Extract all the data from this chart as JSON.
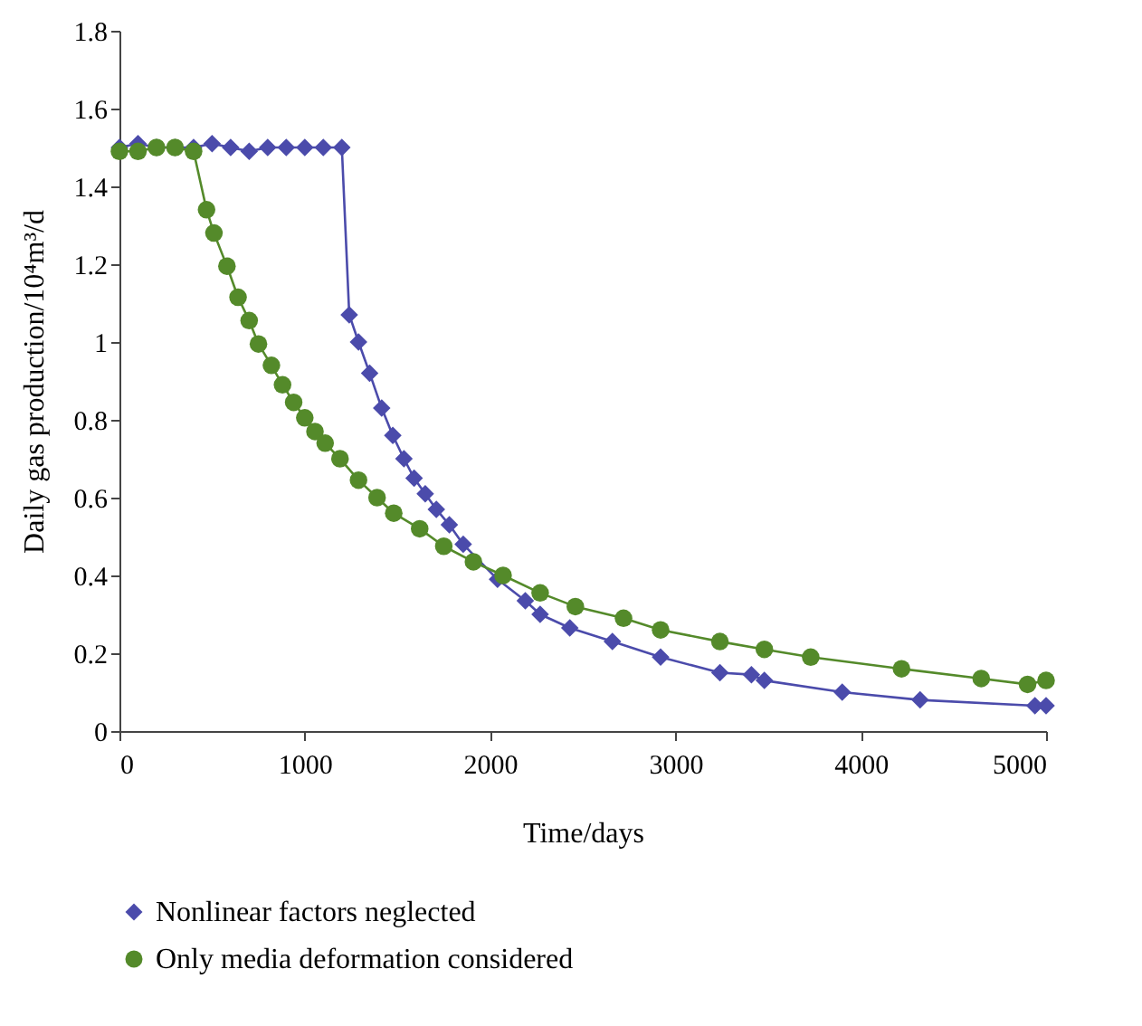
{
  "chart_data": {
    "type": "line",
    "xlabel": "Time/days",
    "ylabel": "Daily gas production/10⁴m³/d",
    "xlim": [
      0,
      5000
    ],
    "xticks": [
      0,
      1000,
      2000,
      3000,
      4000,
      5000
    ],
    "ylim": [
      0,
      1.8
    ],
    "yticks": [
      0,
      0.2,
      0.4,
      0.6,
      0.8,
      1,
      1.2,
      1.4,
      1.6,
      1.8
    ],
    "line_style": "solid",
    "grid": false,
    "legend": "bottom left",
    "series": [
      {
        "name": "Nonlinear factors neglected",
        "color": "#4b4bab",
        "marker": "diamond",
        "x": [
          0,
          100,
          200,
          300,
          400,
          500,
          600,
          700,
          800,
          900,
          1000,
          1100,
          1200,
          1240,
          1290,
          1350,
          1415,
          1475,
          1535,
          1590,
          1650,
          1710,
          1780,
          1855,
          2040,
          2190,
          2270,
          2430,
          2660,
          2920,
          3240,
          3410,
          3480,
          3900,
          4320,
          4940,
          5000
        ],
        "values": [
          1.5,
          1.51,
          1.5,
          1.5,
          1.5,
          1.51,
          1.5,
          1.49,
          1.5,
          1.5,
          1.5,
          1.5,
          1.5,
          1.07,
          1.0,
          0.92,
          0.83,
          0.76,
          0.7,
          0.65,
          0.61,
          0.57,
          0.53,
          0.48,
          0.39,
          0.335,
          0.3,
          0.265,
          0.23,
          0.19,
          0.15,
          0.145,
          0.13,
          0.1,
          0.08,
          0.065,
          0.065
        ]
      },
      {
        "name": "Only media deformation considered",
        "color": "#548a2a",
        "marker": "circle",
        "x": [
          0,
          100,
          200,
          300,
          400,
          470,
          510,
          580,
          640,
          700,
          750,
          820,
          880,
          940,
          1000,
          1055,
          1110,
          1190,
          1290,
          1390,
          1480,
          1620,
          1750,
          1910,
          2070,
          2270,
          2460,
          2720,
          2920,
          3240,
          3480,
          3730,
          4220,
          4650,
          4900,
          5000
        ],
        "values": [
          1.49,
          1.49,
          1.5,
          1.5,
          1.49,
          1.34,
          1.28,
          1.195,
          1.115,
          1.055,
          0.995,
          0.94,
          0.89,
          0.845,
          0.805,
          0.77,
          0.74,
          0.7,
          0.645,
          0.6,
          0.56,
          0.52,
          0.475,
          0.435,
          0.4,
          0.355,
          0.32,
          0.29,
          0.26,
          0.23,
          0.21,
          0.19,
          0.16,
          0.135,
          0.12,
          0.13
        ]
      }
    ]
  }
}
